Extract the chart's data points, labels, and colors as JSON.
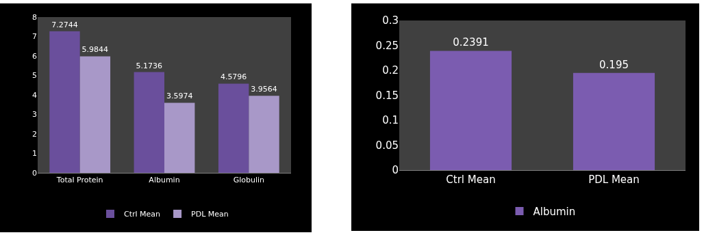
{
  "chart_data": [
    {
      "type": "bar",
      "categories": [
        "Total Protein",
        "Albumin",
        "Globulin"
      ],
      "series": [
        {
          "name": "Ctrl Mean",
          "color": "#6a4f9c",
          "values": [
            7.2744,
            5.1736,
            4.5796
          ]
        },
        {
          "name": "PDL Mean",
          "color": "#a898c8",
          "values": [
            5.9844,
            3.5974,
            3.9564
          ]
        }
      ],
      "ylim": [
        0,
        8
      ],
      "yticks": [
        0,
        1,
        2,
        3,
        4,
        5,
        6,
        7,
        8
      ],
      "data_labels": true,
      "legend": "bottom"
    },
    {
      "type": "bar",
      "categories": [
        "Ctrl Mean",
        "PDL Mean"
      ],
      "series": [
        {
          "name": "Albumin",
          "color": "#7b5cb0",
          "values": [
            0.2391,
            0.195
          ]
        }
      ],
      "ylim": [
        0,
        0.3
      ],
      "yticks": [
        0,
        0.05,
        0.1,
        0.15,
        0.2,
        0.25,
        0.3
      ],
      "data_labels": true,
      "legend": "bottom"
    }
  ]
}
